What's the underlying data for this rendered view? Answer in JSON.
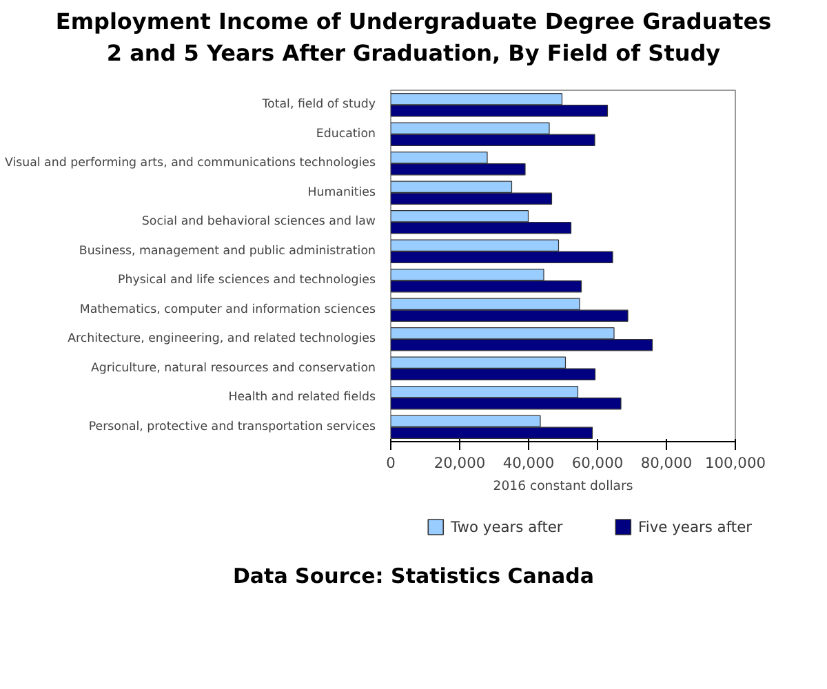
{
  "chart_data": {
    "type": "bar",
    "orientation": "horizontal",
    "title": "Employment Income of Undergraduate Degree Graduates\n2 and 5 Years After Graduation, By Field of Study",
    "categories": [
      "Total, field of study",
      "Education",
      "Visual and performing arts, and communications technologies",
      "Humanities",
      "Social and behavioral sciences and law",
      "Business, management and public administration",
      "Physical and life sciences and technologies",
      "Mathematics, computer and information sciences",
      "Architecture, engineering, and related technologies",
      "Agriculture, natural resources and conservation",
      "Health and related fields",
      "Personal, protective and transportation services"
    ],
    "series": [
      {
        "name": "Two years after",
        "color": "#99ccff",
        "values": [
          49700,
          46000,
          28000,
          35100,
          39900,
          48700,
          44400,
          54800,
          64800,
          50700,
          54300,
          43400
        ]
      },
      {
        "name": "Five years after",
        "color": "#000080",
        "values": [
          62900,
          59200,
          39000,
          46700,
          52300,
          64400,
          55300,
          68800,
          75900,
          59300,
          66800,
          58500
        ]
      }
    ],
    "xlabel": "2016 constant dollars",
    "xlim": [
      0,
      100000
    ],
    "xticks": [
      {
        "value": 0,
        "label": "0"
      },
      {
        "value": 20000,
        "label": "20,000"
      },
      {
        "value": 40000,
        "label": "40,000"
      },
      {
        "value": 60000,
        "label": "60,000"
      },
      {
        "value": 80000,
        "label": "80,000"
      },
      {
        "value": 100000,
        "label": "100,000"
      }
    ],
    "legend": "bottom",
    "annotations": [
      "Data Source: Statistics Canada"
    ]
  }
}
